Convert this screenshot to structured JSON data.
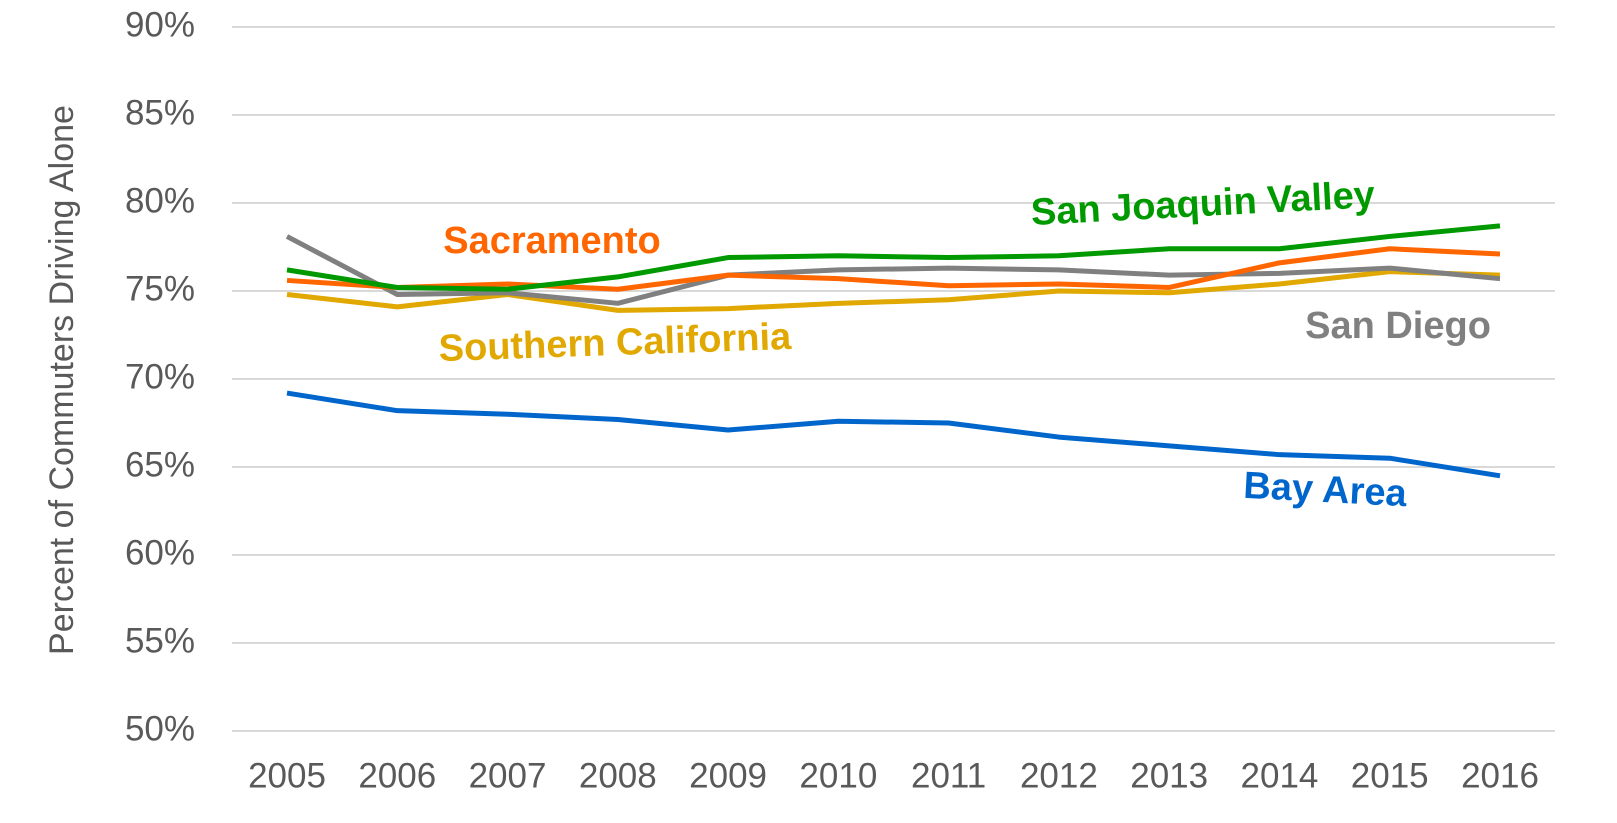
{
  "chart_data": {
    "type": "line",
    "y_label": "Percent of Commuters Driving Alone",
    "categories": [
      "2005",
      "2006",
      "2007",
      "2008",
      "2009",
      "2010",
      "2011",
      "2012",
      "2013",
      "2014",
      "2015",
      "2016"
    ],
    "series": [
      {
        "name": "Bay Area",
        "color": "#0066cc",
        "values": [
          69.2,
          68.2,
          68.0,
          67.7,
          67.1,
          67.6,
          67.5,
          66.7,
          66.2,
          65.7,
          65.5,
          64.5
        ]
      },
      {
        "name": "Southern California",
        "color": "#e0a800",
        "values": [
          74.8,
          74.1,
          74.8,
          73.9,
          74.0,
          74.3,
          74.5,
          75.0,
          74.9,
          75.4,
          76.1,
          75.9
        ]
      },
      {
        "name": "San Diego",
        "color": "#808080",
        "values": [
          78.1,
          74.8,
          74.9,
          74.3,
          75.9,
          76.2,
          76.3,
          76.2,
          75.9,
          76.0,
          76.3,
          75.7
        ]
      },
      {
        "name": "Sacramento",
        "color": "#ff6600",
        "values": [
          75.6,
          75.2,
          75.4,
          75.1,
          75.9,
          75.7,
          75.3,
          75.4,
          75.2,
          76.6,
          77.4,
          77.1
        ]
      },
      {
        "name": "San Joaquin Valley",
        "color": "#009900",
        "values": [
          76.2,
          75.2,
          75.1,
          75.8,
          76.9,
          77.0,
          76.9,
          77.0,
          77.4,
          77.4,
          78.1,
          78.7
        ]
      }
    ],
    "ylim": [
      50,
      90
    ],
    "yticks": [
      {
        "value": 50,
        "label": "50%"
      },
      {
        "value": 55,
        "label": "55%"
      },
      {
        "value": 60,
        "label": "60%"
      },
      {
        "value": 65,
        "label": "65%"
      },
      {
        "value": 70,
        "label": "70%"
      },
      {
        "value": 75,
        "label": "75%"
      },
      {
        "value": 80,
        "label": "80%"
      },
      {
        "value": 85,
        "label": "85%"
      },
      {
        "value": 90,
        "label": "90%"
      }
    ],
    "grid": true
  }
}
